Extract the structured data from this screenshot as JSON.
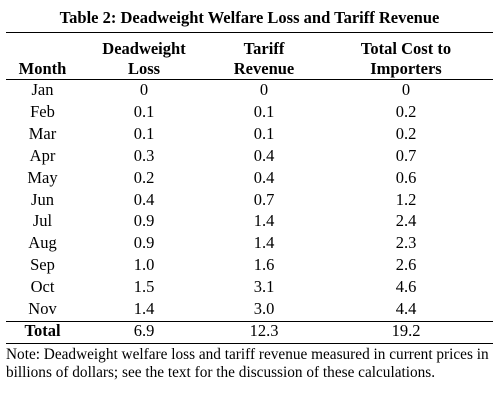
{
  "title": "Table 2: Deadweight Welfare Loss and Tariff Revenue",
  "headers": {
    "month": "Month",
    "deadweight_line1": "Deadweight",
    "deadweight_line2": "Loss",
    "tariff_line1": "Tariff",
    "tariff_line2": "Revenue",
    "total_line1": "Total Cost to",
    "total_line2": "Importers"
  },
  "rows": [
    {
      "month": "Jan",
      "deadweight": "0",
      "tariff": "0",
      "total": "0"
    },
    {
      "month": "Feb",
      "deadweight": "0.1",
      "tariff": "0.1",
      "total": "0.2"
    },
    {
      "month": "Mar",
      "deadweight": "0.1",
      "tariff": "0.1",
      "total": "0.2"
    },
    {
      "month": "Apr",
      "deadweight": "0.3",
      "tariff": "0.4",
      "total": "0.7"
    },
    {
      "month": "May",
      "deadweight": "0.2",
      "tariff": "0.4",
      "total": "0.6"
    },
    {
      "month": "Jun",
      "deadweight": "0.4",
      "tariff": "0.7",
      "total": "1.2"
    },
    {
      "month": "Jul",
      "deadweight": "0.9",
      "tariff": "1.4",
      "total": "2.4"
    },
    {
      "month": "Aug",
      "deadweight": "0.9",
      "tariff": "1.4",
      "total": "2.3"
    },
    {
      "month": "Sep",
      "deadweight": "1.0",
      "tariff": "1.6",
      "total": "2.6"
    },
    {
      "month": "Oct",
      "deadweight": "1.5",
      "tariff": "3.1",
      "total": "4.6"
    },
    {
      "month": "Nov",
      "deadweight": "1.4",
      "tariff": "3.0",
      "total": "4.4"
    }
  ],
  "total": {
    "label": "Total",
    "deadweight": "6.9",
    "tariff": "12.3",
    "total": "19.2"
  },
  "note": "Note: Deadweight welfare loss and tariff revenue measured in current prices in billions of dollars; see the text for the discussion of these calculations."
}
